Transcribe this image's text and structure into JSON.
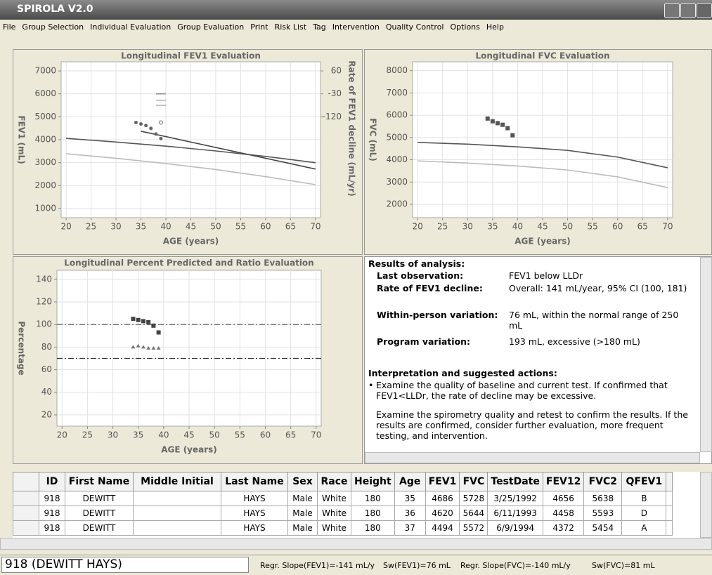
{
  "window": {
    "title": "SPIROLA V2.0"
  },
  "menu": [
    "File",
    "Group Selection",
    "Individual Evaluation",
    "Group Evaluation",
    "Print",
    "Risk List",
    "Tag",
    "Intervention",
    "Quality Control",
    "Options",
    "Help"
  ],
  "charts": [
    {
      "type": "line",
      "title": "Longitudinal FEV1 Evaluation",
      "xlabel": "AGE (years)",
      "ylabel": "FEV1 (mL)",
      "y2label": "Rate of FEV1 decline (mL/yr)",
      "xlim": [
        19,
        71
      ],
      "xticks": [
        20,
        25,
        30,
        35,
        40,
        45,
        50,
        55,
        60,
        65,
        70
      ],
      "ylim": [
        600,
        7400
      ],
      "yticks": [
        1000,
        2000,
        3000,
        4000,
        5000,
        6000,
        7000
      ],
      "y2lim": [
        -516,
        96
      ],
      "y2ticks": [
        60,
        -30,
        -120
      ],
      "grid": true,
      "series": [
        {
          "style": "line",
          "color": "#555555",
          "x": [
            20,
            30,
            40,
            50,
            60,
            70
          ],
          "values": [
            4060,
            3900,
            3720,
            3510,
            3270,
            3000
          ]
        },
        {
          "style": "line",
          "color": "#bbbbbb",
          "x": [
            20,
            30,
            40,
            50,
            60,
            70
          ],
          "values": [
            3390,
            3190,
            2960,
            2700,
            2390,
            2040
          ]
        },
        {
          "style": "line",
          "color": "#444444",
          "x": [
            35,
            70
          ],
          "values": [
            4370,
            2720
          ]
        },
        {
          "style": "dots",
          "color": "#666666",
          "x": [
            34,
            35,
            36,
            37,
            38,
            39
          ],
          "values": [
            4750,
            4686,
            4620,
            4494,
            4250,
            4050
          ]
        },
        {
          "style": "circle",
          "color": "#666666",
          "x": [
            39
          ],
          "values": [
            4750
          ]
        },
        {
          "style": "dash",
          "color": "#888888",
          "axis": "y2",
          "x": [
            39,
            39,
            39
          ],
          "values": [
            -30,
            -55,
            -75
          ]
        }
      ]
    },
    {
      "type": "line",
      "title": "Longitudinal FVC Evaluation",
      "xlabel": "AGE (years)",
      "ylabel": "FVC (mL)",
      "xlim": [
        19,
        71
      ],
      "xticks": [
        20,
        25,
        30,
        35,
        40,
        45,
        50,
        55,
        60,
        65,
        70
      ],
      "ylim": [
        1400,
        8400
      ],
      "yticks": [
        2000,
        3000,
        4000,
        5000,
        6000,
        7000,
        8000
      ],
      "grid": true,
      "series": [
        {
          "style": "line",
          "color": "#555555",
          "x": [
            20,
            30,
            40,
            50,
            60,
            70
          ],
          "values": [
            4780,
            4700,
            4580,
            4420,
            4120,
            3640
          ]
        },
        {
          "style": "line",
          "color": "#bbbbbb",
          "x": [
            20,
            30,
            40,
            50,
            60,
            70
          ],
          "values": [
            3950,
            3850,
            3720,
            3540,
            3230,
            2750
          ]
        },
        {
          "style": "squares",
          "color": "#555555",
          "x": [
            34,
            35,
            36,
            37,
            38,
            39
          ],
          "values": [
            5850,
            5728,
            5644,
            5572,
            5420,
            5100
          ]
        }
      ]
    },
    {
      "type": "line",
      "title": "Longitudinal Percent Predicted and Ratio Evaluation",
      "xlabel": "AGE (years)",
      "ylabel": "Percentage",
      "xlim": [
        19,
        71
      ],
      "xticks": [
        20,
        25,
        30,
        35,
        40,
        45,
        50,
        55,
        60,
        65,
        70
      ],
      "ylim": [
        10,
        148
      ],
      "yticks": [
        20,
        40,
        60,
        80,
        100,
        120,
        140
      ],
      "grid": true,
      "series": [
        {
          "style": "dashdot",
          "color": "#666666",
          "x": [
            19,
            71
          ],
          "values": [
            100,
            100
          ]
        },
        {
          "style": "dashdot",
          "color": "#333333",
          "x": [
            19,
            71
          ],
          "values": [
            70,
            70
          ]
        },
        {
          "style": "squares",
          "color": "#444444",
          "x": [
            34,
            35,
            36,
            37,
            38,
            39
          ],
          "values": [
            105,
            104,
            103,
            102,
            99,
            93
          ]
        },
        {
          "style": "triangles",
          "color": "#777777",
          "x": [
            34,
            35,
            36,
            37,
            38,
            39
          ],
          "values": [
            80,
            81,
            80,
            79,
            79,
            79
          ]
        }
      ]
    }
  ],
  "results": {
    "heading": "Results of analysis:",
    "rows": [
      {
        "label": "Last observation:",
        "value": "FEV1 below LLDr"
      },
      {
        "label": "Rate of FEV1 decline:",
        "value": "Overall: 141 mL/year, 95% CI (100, 181)"
      },
      {
        "label": "Within-person variation:",
        "value": "76 mL, within the normal range of 250 mL"
      },
      {
        "label": "Program variation:",
        "value": "193 mL, excessive (>180 mL)"
      }
    ],
    "interp_heading": "Interpretation and suggested actions:",
    "bullet": "Examine the quality of baseline and current test. If confirmed that FEV1<LLDr, the rate of decline may be excessive.",
    "paragraph": "Examine the spirometry quality and retest to confirm the results. If the results are confirmed,  consider further evaluation, more frequent testing, and intervention."
  },
  "table": {
    "columns": [
      "ID",
      "First Name",
      "Middle Initial",
      "Last Name",
      "Sex",
      "Race",
      "Height",
      "Age",
      "FEV1",
      "FVC",
      "TestDate",
      "FEV12",
      "FVC2",
      "QFEV1"
    ],
    "rows": [
      [
        918,
        "DEWITT",
        null,
        "HAYS",
        "Male",
        "White",
        180,
        35,
        4686,
        5728,
        "3/25/1992",
        4656,
        5638,
        "B"
      ],
      [
        918,
        "DEWITT",
        null,
        "HAYS",
        "Male",
        "White",
        180,
        36,
        4620,
        5644,
        "6/11/1993",
        4458,
        5593,
        "D"
      ],
      [
        918,
        "DEWITT",
        null,
        "HAYS",
        "Male",
        "White",
        180,
        37,
        4494,
        5572,
        "6/9/1994",
        4372,
        5454,
        "A"
      ]
    ]
  },
  "status": {
    "patient": "918 (DEWITT HAYS)",
    "stats": [
      "Regr. Slope(FEV1)=-141 mL/y",
      "Sw(FEV1)=76 mL",
      "Regr. Slope(FVC)=-140 mL/y",
      "Sw(FVC)=81 mL"
    ]
  }
}
